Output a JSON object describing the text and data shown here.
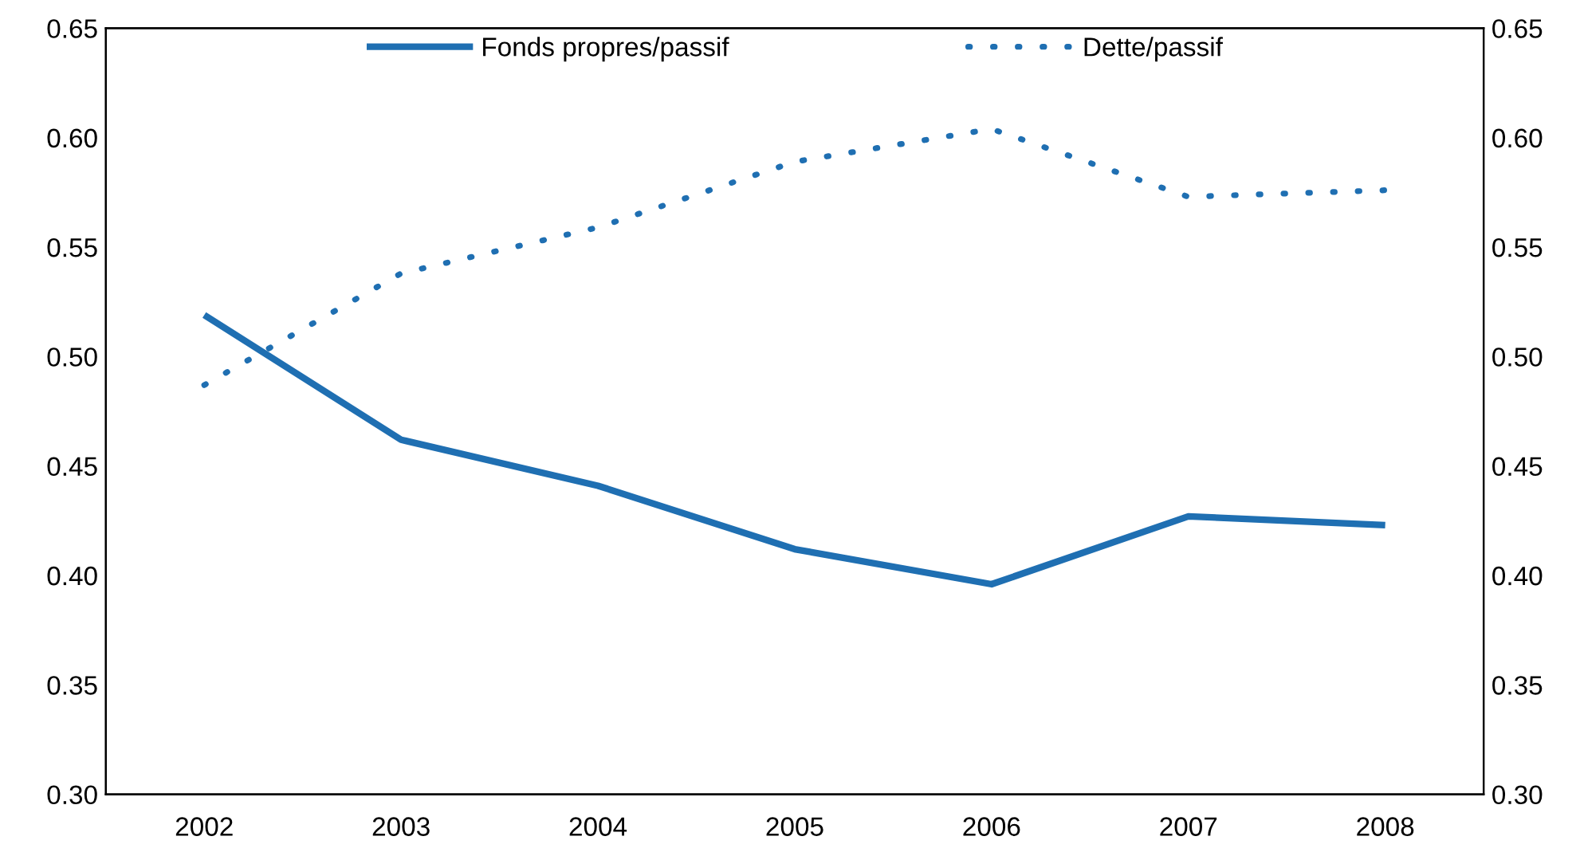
{
  "chart_data": {
    "type": "line",
    "categories": [
      "2002",
      "2003",
      "2004",
      "2005",
      "2006",
      "2007",
      "2008"
    ],
    "series": [
      {
        "name": "Fonds propres/passif",
        "color": "#1f6fb2",
        "line_style": "solid",
        "values": [
          0.519,
          0.462,
          0.441,
          0.412,
          0.396,
          0.427,
          0.423
        ]
      },
      {
        "name": "Dette/passif",
        "color": "#1f6fb2",
        "line_style": "dotted",
        "values": [
          0.487,
          0.538,
          0.559,
          0.589,
          0.604,
          0.573,
          0.576
        ]
      }
    ],
    "ylim": [
      0.3,
      0.65
    ],
    "yticks": [
      {
        "value": 0.3,
        "label": "0.30"
      },
      {
        "value": 0.35,
        "label": "0.35"
      },
      {
        "value": 0.4,
        "label": "0.40"
      },
      {
        "value": 0.45,
        "label": "0.45"
      },
      {
        "value": 0.5,
        "label": "0.50"
      },
      {
        "value": 0.55,
        "label": "0.55"
      },
      {
        "value": 0.6,
        "label": "0.60"
      },
      {
        "value": 0.65,
        "label": "0.65"
      }
    ],
    "y2lim": [
      0.3,
      0.65
    ],
    "y2ticks": [
      {
        "value": 0.3,
        "label": "0.30"
      },
      {
        "value": 0.35,
        "label": "0.35"
      },
      {
        "value": 0.4,
        "label": "0.40"
      },
      {
        "value": 0.45,
        "label": "0.45"
      },
      {
        "value": 0.5,
        "label": "0.50"
      },
      {
        "value": 0.55,
        "label": "0.55"
      },
      {
        "value": 0.6,
        "label": "0.60"
      },
      {
        "value": 0.65,
        "label": "0.65"
      }
    ],
    "legend": "top",
    "grid": false,
    "marker": "none"
  }
}
